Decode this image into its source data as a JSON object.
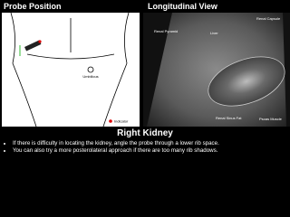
{
  "left_panel": {
    "title": "Probe Position",
    "labels": {
      "umbilicus": "Umbilicus",
      "indicator": "Indicator"
    }
  },
  "right_panel": {
    "title": "Longitudinal View",
    "labels": {
      "renal_pyramid": "Renal Pyramid",
      "renal_capsule": "Renal Capsule",
      "liver": "Liver",
      "renal_sinus_fat": "Renal Sinus Fat",
      "psoas_muscle": "Psoas Muscle"
    }
  },
  "caption": {
    "title": "Right Kidney",
    "bullets": [
      "If there is difficulty in locating the kidney, angle the probe through a lower rib space.",
      "You can also try a more posterolateral approach if there are too many rib shadows."
    ]
  }
}
